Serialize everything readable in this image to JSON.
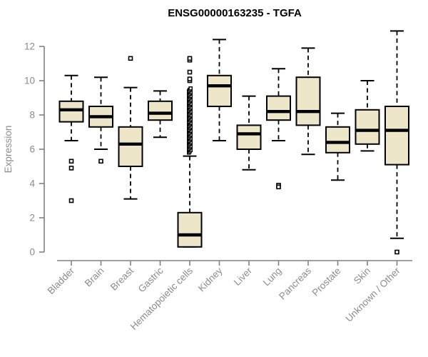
{
  "chart_data": {
    "type": "boxplot",
    "title": "ENSG00000163235 - TGFA",
    "xlabel": "",
    "ylabel": "Expression",
    "ylim": [
      0,
      13
    ],
    "yticks": [
      0,
      2,
      4,
      6,
      8,
      10,
      12
    ],
    "grid": false,
    "categories": [
      "Bladder",
      "Brain",
      "Breast",
      "Gastric",
      "Hematopoietic cells",
      "Kidney",
      "Liver",
      "Lung",
      "Pancreas",
      "Prostate",
      "Skin",
      "Unknown / Other"
    ],
    "boxes": [
      {
        "category": "Bladder",
        "whisker_low": 6.5,
        "q1": 7.6,
        "median": 8.3,
        "q3": 8.8,
        "whisker_high": 10.3,
        "outliers": [
          5.3,
          4.9,
          3.0
        ]
      },
      {
        "category": "Brain",
        "whisker_low": 6.0,
        "q1": 7.3,
        "median": 7.9,
        "q3": 8.5,
        "whisker_high": 10.2,
        "outliers": [
          5.3
        ]
      },
      {
        "category": "Breast",
        "whisker_low": 3.1,
        "q1": 5.0,
        "median": 6.3,
        "q3": 7.3,
        "whisker_high": 9.6,
        "outliers": [
          11.3
        ]
      },
      {
        "category": "Gastric",
        "whisker_low": 6.7,
        "q1": 7.7,
        "median": 8.1,
        "q3": 8.8,
        "whisker_high": 9.4,
        "outliers": []
      },
      {
        "category": "Hematopoietic cells",
        "whisker_low": 0.3,
        "q1": 0.3,
        "median": 1.0,
        "q3": 2.3,
        "whisker_high": 5.6,
        "outliers": [
          10.0,
          10.1,
          10.5,
          11.2,
          11.3
        ],
        "outlier_dense_range": [
          5.8,
          9.6
        ]
      },
      {
        "category": "Kidney",
        "whisker_low": 6.5,
        "q1": 8.5,
        "median": 9.7,
        "q3": 10.3,
        "whisker_high": 12.4,
        "outliers": []
      },
      {
        "category": "Liver",
        "whisker_low": 4.8,
        "q1": 6.0,
        "median": 6.9,
        "q3": 7.4,
        "whisker_high": 9.1,
        "outliers": []
      },
      {
        "category": "Lung",
        "whisker_low": 6.5,
        "q1": 7.7,
        "median": 8.2,
        "q3": 9.1,
        "whisker_high": 10.7,
        "outliers": [
          3.9,
          3.8
        ]
      },
      {
        "category": "Pancreas",
        "whisker_low": 5.7,
        "q1": 7.4,
        "median": 8.2,
        "q3": 10.2,
        "whisker_high": 11.9,
        "outliers": []
      },
      {
        "category": "Prostate",
        "whisker_low": 4.2,
        "q1": 5.8,
        "median": 6.4,
        "q3": 7.3,
        "whisker_high": 8.1,
        "outliers": []
      },
      {
        "category": "Skin",
        "whisker_low": 5.9,
        "q1": 6.3,
        "median": 7.1,
        "q3": 8.3,
        "whisker_high": 10.0,
        "outliers": []
      },
      {
        "category": "Unknown / Other",
        "whisker_low": 0.8,
        "q1": 5.1,
        "median": 7.1,
        "q3": 8.5,
        "whisker_high": 12.9,
        "outliers": [
          0.0
        ]
      }
    ],
    "colors": {
      "box_fill": "#EDE6C9",
      "box_border": "#000000",
      "median": "#000000",
      "whisker": "#000000",
      "outlier": "#000000",
      "axis": "#808080",
      "tick_label": "#8C8C8C",
      "title": "#000000",
      "background": "#FFFFFF"
    }
  }
}
